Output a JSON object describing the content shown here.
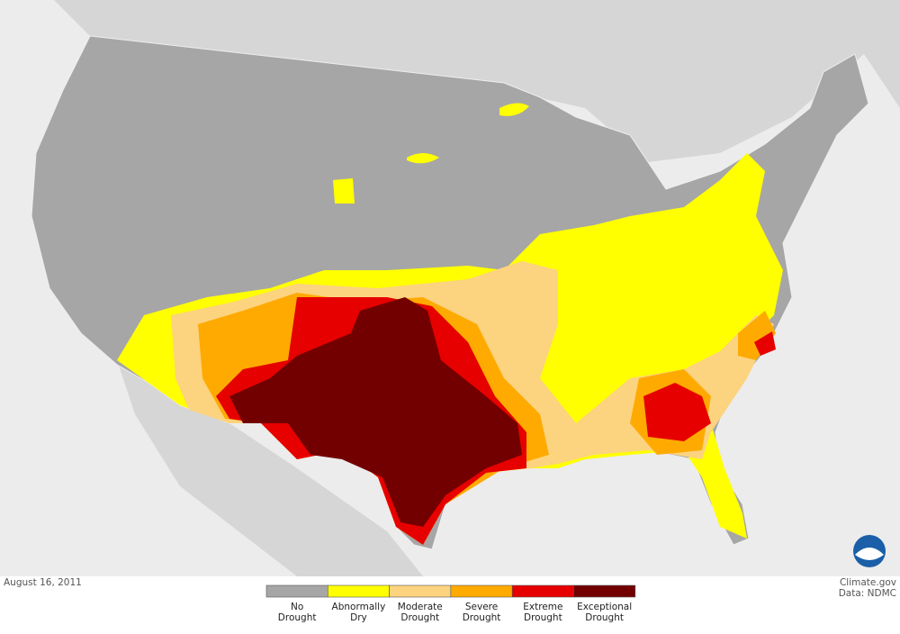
{
  "footer": {
    "date": "August 16, 2011",
    "credit": "Climate.gov",
    "source": "Data: NDMC"
  },
  "legend": {
    "items": [
      {
        "label": [
          "No",
          "Drought"
        ],
        "color": "#a6a6a6"
      },
      {
        "label": [
          "Abnormally",
          "Dry"
        ],
        "color": "#ffff00"
      },
      {
        "label": [
          "Moderate",
          "Drought"
        ],
        "color": "#fcd37f"
      },
      {
        "label": [
          "Severe",
          "Drought"
        ],
        "color": "#ffaa00"
      },
      {
        "label": [
          "Extreme",
          "Drought"
        ],
        "color": "#e60000"
      },
      {
        "label": [
          "Exceptional",
          "Drought"
        ],
        "color": "#730000"
      }
    ]
  }
}
